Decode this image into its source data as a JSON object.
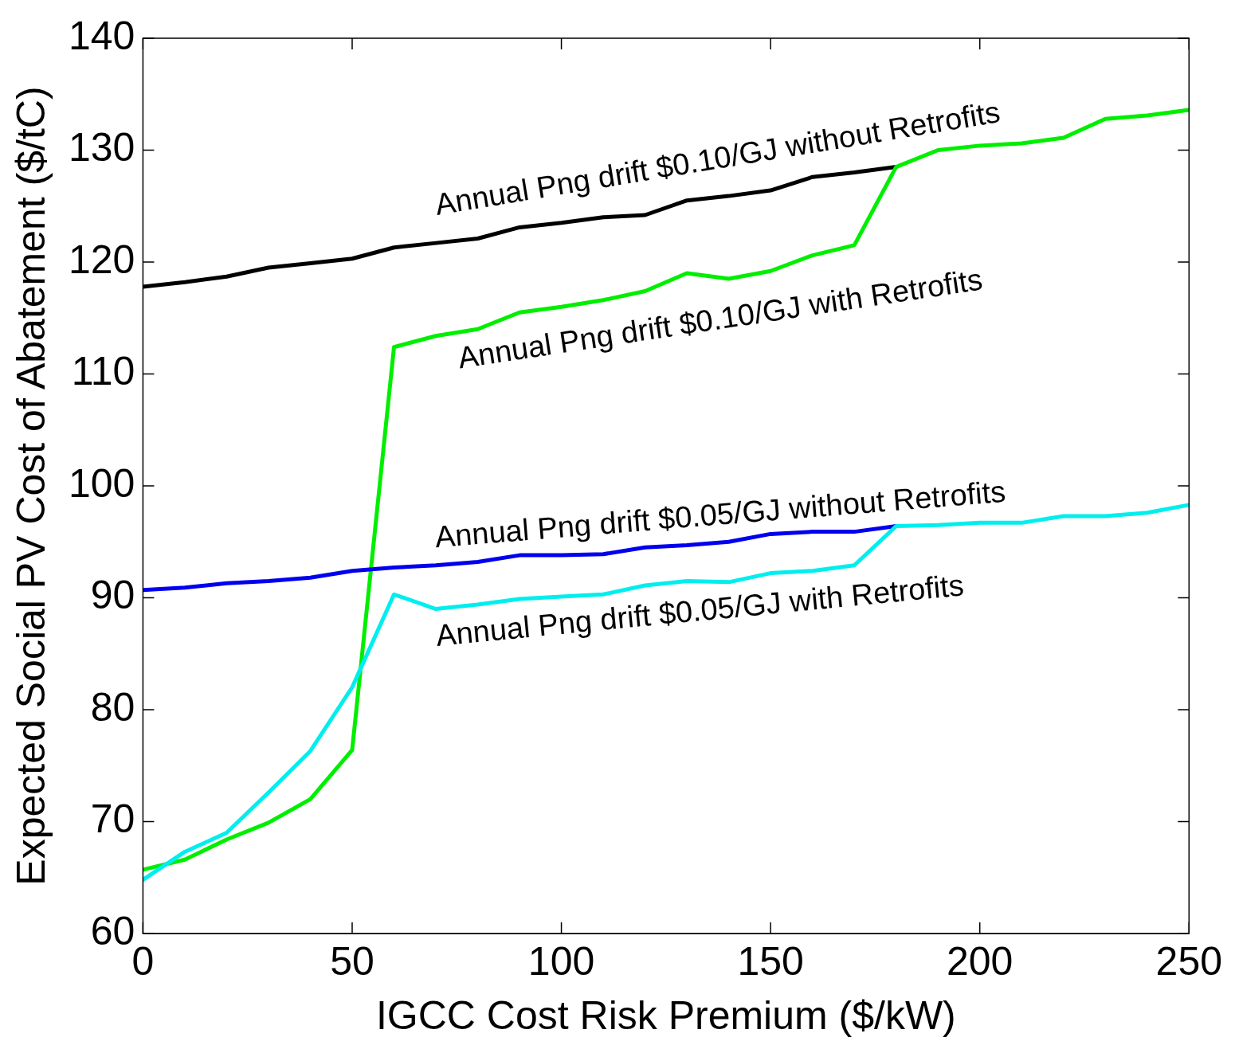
{
  "chart_data": {
    "type": "line",
    "xlabel": "IGCC Cost Risk Premium ($/kW)",
    "ylabel": "Expected Social PV Cost of Abatement ($/tC)",
    "x": [
      0,
      10,
      20,
      30,
      40,
      50,
      60,
      70,
      80,
      90,
      100,
      110,
      120,
      130,
      140,
      150,
      160,
      170,
      180,
      190,
      200,
      210,
      220,
      230,
      240,
      250
    ],
    "xlim": [
      0,
      250
    ],
    "xticks": [
      0,
      50,
      100,
      150,
      200,
      250
    ],
    "ylim": [
      60,
      140
    ],
    "yticks": [
      60,
      70,
      80,
      90,
      100,
      110,
      120,
      130,
      140
    ],
    "grid": false,
    "legend": false,
    "marker": "none",
    "line_style": "solid",
    "series": [
      {
        "name": "Annual Png drift $0.10/GJ without Retrofits",
        "color": "#000000",
        "x": [
          0,
          10,
          20,
          30,
          40,
          50,
          60,
          70,
          80,
          90,
          100,
          110,
          120,
          130,
          140,
          150,
          160,
          170,
          180
        ],
        "values": [
          117.8,
          118.2,
          118.7,
          119.5,
          119.9,
          120.3,
          121.3,
          121.7,
          122.1,
          123.1,
          123.5,
          124.0,
          124.2,
          125.5,
          125.9,
          126.4,
          127.6,
          128.0,
          128.5
        ]
      },
      {
        "name": "Annual Png drift $0.10/GJ with Retrofits",
        "color": "#00ee00",
        "values": [
          65.7,
          66.6,
          68.4,
          69.9,
          72.0,
          76.4,
          112.4,
          113.4,
          114.0,
          115.5,
          116.0,
          116.6,
          117.4,
          119.0,
          118.5,
          119.2,
          120.6,
          121.5,
          128.5,
          130.0,
          130.4,
          130.6,
          131.1,
          132.8,
          133.1,
          133.6
        ]
      },
      {
        "name": "Annual Png drift $0.05/GJ without Retrofits",
        "color": "#0000ee",
        "values": [
          90.7,
          90.9,
          91.3,
          91.5,
          91.8,
          92.4,
          92.7,
          92.9,
          93.2,
          93.8,
          93.8,
          93.9,
          94.5,
          94.7,
          95.0,
          95.7,
          95.9,
          95.9,
          96.4,
          null,
          null,
          null,
          null,
          null,
          null,
          null
        ]
      },
      {
        "name": "Annual Png drift $0.05/GJ with Retrofits",
        "color": "#00eeee",
        "values": [
          64.8,
          67.3,
          69.0,
          72.6,
          76.3,
          82.0,
          90.3,
          89.0,
          89.4,
          89.9,
          90.1,
          90.3,
          91.1,
          91.5,
          91.4,
          92.2,
          92.4,
          92.9,
          96.4,
          96.5,
          96.7,
          96.7,
          97.3,
          97.3,
          97.6,
          98.3
        ]
      }
    ]
  }
}
